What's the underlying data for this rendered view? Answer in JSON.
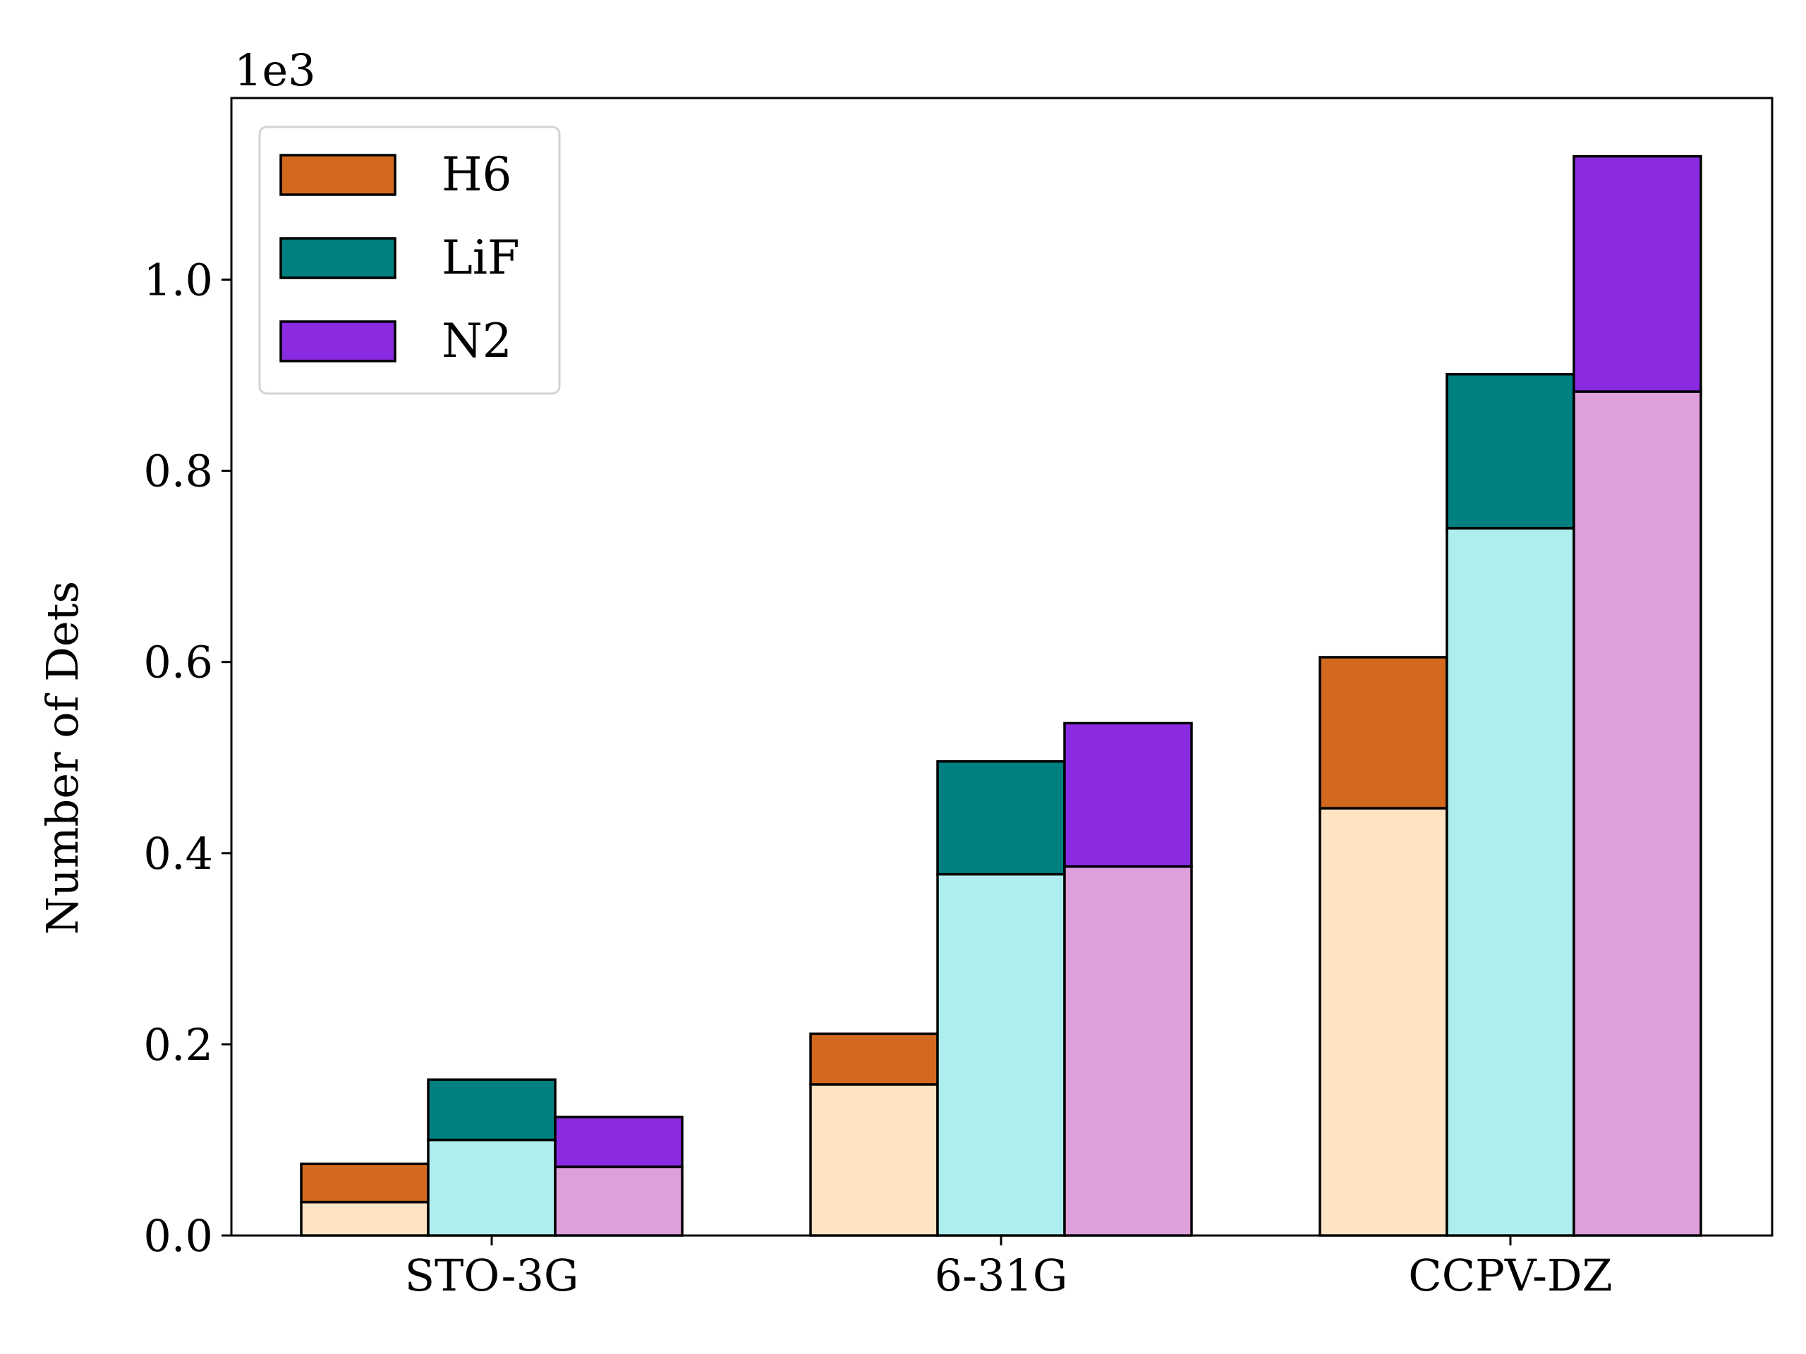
{
  "chart_data": {
    "type": "bar",
    "stacked": true,
    "categories": [
      "STO-3G",
      "6-31G",
      "CCPV-DZ"
    ],
    "series": [
      {
        "name": "H6",
        "color": "#d2691e",
        "base_color": "#ffe4c4",
        "base_values": [
          0.035,
          0.158,
          0.447
        ],
        "top_values": [
          0.04,
          0.053,
          0.158
        ],
        "total_values": [
          0.075,
          0.211,
          0.605
        ]
      },
      {
        "name": "LiF",
        "color": "#008080",
        "base_color": "#afeeee",
        "base_values": [
          0.1,
          0.378,
          0.74
        ],
        "top_values": [
          0.063,
          0.118,
          0.161
        ],
        "total_values": [
          0.163,
          0.496,
          0.901
        ]
      },
      {
        "name": "N2",
        "color": "#8a2be2",
        "base_color": "#dda0dd",
        "base_values": [
          0.072,
          0.386,
          0.883
        ],
        "top_values": [
          0.052,
          0.15,
          0.246
        ],
        "total_values": [
          0.124,
          0.536,
          1.129
        ]
      }
    ],
    "ylabel": "Number of Dets",
    "xlabel": "",
    "title": "",
    "y_multiplier_label": "1e3",
    "ylim": [
      0,
      1.19
    ],
    "yticks": [
      "0.0",
      "0.2",
      "0.4",
      "0.6",
      "0.8",
      "1.0"
    ],
    "grid": false,
    "legend": "top-left"
  }
}
